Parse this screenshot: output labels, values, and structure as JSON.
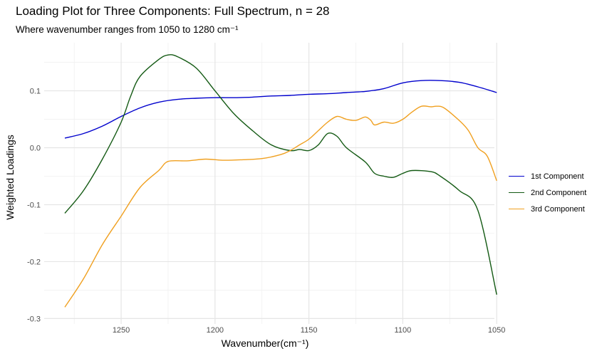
{
  "chart_data": {
    "type": "line",
    "title": "Loading Plot for Three Components: Full Spectrum, n = 28",
    "subtitle": "Where wavenumber ranges from 1050 to 1280 cm⁻¹",
    "xlabel": "Wavenumber(cm⁻¹)",
    "ylabel": "Weighted Loadings",
    "x_reversed": true,
    "xlim": [
      1050,
      1280
    ],
    "ylim": [
      -0.3,
      0.175
    ],
    "x_ticks": [
      1250,
      1200,
      1150,
      1100,
      1050
    ],
    "y_ticks": [
      0.1,
      0.0,
      -0.1,
      -0.2,
      -0.3
    ],
    "y_tick_labels": [
      "0.1",
      "0.0",
      "-0.1",
      "-0.2",
      "-0.3"
    ],
    "grid": true,
    "legend_position": "right",
    "series": [
      {
        "name": "1st Component",
        "color": "#0000cd",
        "points": [
          [
            1280,
            0.017
          ],
          [
            1270,
            0.025
          ],
          [
            1260,
            0.038
          ],
          [
            1250,
            0.055
          ],
          [
            1240,
            0.07
          ],
          [
            1230,
            0.08
          ],
          [
            1220,
            0.085
          ],
          [
            1210,
            0.087
          ],
          [
            1200,
            0.088
          ],
          [
            1190,
            0.088
          ],
          [
            1180,
            0.089
          ],
          [
            1170,
            0.091
          ],
          [
            1160,
            0.092
          ],
          [
            1150,
            0.094
          ],
          [
            1140,
            0.095
          ],
          [
            1130,
            0.097
          ],
          [
            1120,
            0.099
          ],
          [
            1110,
            0.104
          ],
          [
            1100,
            0.114
          ],
          [
            1090,
            0.118
          ],
          [
            1080,
            0.118
          ],
          [
            1070,
            0.115
          ],
          [
            1060,
            0.107
          ],
          [
            1050,
            0.097
          ]
        ]
      },
      {
        "name": "2nd Component",
        "color": "#145a14",
        "points": [
          [
            1280,
            -0.115
          ],
          [
            1270,
            -0.075
          ],
          [
            1260,
            -0.02
          ],
          [
            1250,
            0.045
          ],
          [
            1245,
            0.09
          ],
          [
            1240,
            0.125
          ],
          [
            1230,
            0.155
          ],
          [
            1225,
            0.163
          ],
          [
            1220,
            0.16
          ],
          [
            1210,
            0.14
          ],
          [
            1200,
            0.1
          ],
          [
            1190,
            0.06
          ],
          [
            1180,
            0.03
          ],
          [
            1170,
            0.005
          ],
          [
            1160,
            -0.005
          ],
          [
            1155,
            -0.003
          ],
          [
            1150,
            -0.005
          ],
          [
            1145,
            0.005
          ],
          [
            1140,
            0.025
          ],
          [
            1135,
            0.02
          ],
          [
            1130,
            0.0
          ],
          [
            1120,
            -0.025
          ],
          [
            1115,
            -0.045
          ],
          [
            1110,
            -0.05
          ],
          [
            1105,
            -0.052
          ],
          [
            1100,
            -0.045
          ],
          [
            1095,
            -0.04
          ],
          [
            1085,
            -0.042
          ],
          [
            1080,
            -0.05
          ],
          [
            1070,
            -0.075
          ],
          [
            1060,
            -0.11
          ],
          [
            1050,
            -0.258
          ]
        ]
      },
      {
        "name": "3rd Component",
        "color": "#f0a020",
        "points": [
          [
            1280,
            -0.28
          ],
          [
            1270,
            -0.23
          ],
          [
            1260,
            -0.17
          ],
          [
            1250,
            -0.12
          ],
          [
            1240,
            -0.07
          ],
          [
            1230,
            -0.04
          ],
          [
            1225,
            -0.024
          ],
          [
            1215,
            -0.023
          ],
          [
            1205,
            -0.02
          ],
          [
            1195,
            -0.022
          ],
          [
            1185,
            -0.021
          ],
          [
            1175,
            -0.019
          ],
          [
            1165,
            -0.012
          ],
          [
            1160,
            -0.005
          ],
          [
            1155,
            0.005
          ],
          [
            1150,
            0.015
          ],
          [
            1145,
            0.03
          ],
          [
            1140,
            0.045
          ],
          [
            1135,
            0.055
          ],
          [
            1130,
            0.05
          ],
          [
            1125,
            0.048
          ],
          [
            1120,
            0.054
          ],
          [
            1117,
            0.048
          ],
          [
            1115,
            0.04
          ],
          [
            1110,
            0.045
          ],
          [
            1105,
            0.043
          ],
          [
            1100,
            0.05
          ],
          [
            1095,
            0.063
          ],
          [
            1090,
            0.073
          ],
          [
            1085,
            0.072
          ],
          [
            1082,
            0.073
          ],
          [
            1078,
            0.07
          ],
          [
            1070,
            0.048
          ],
          [
            1065,
            0.03
          ],
          [
            1060,
            0.0
          ],
          [
            1055,
            -0.015
          ],
          [
            1050,
            -0.058
          ]
        ]
      }
    ]
  }
}
